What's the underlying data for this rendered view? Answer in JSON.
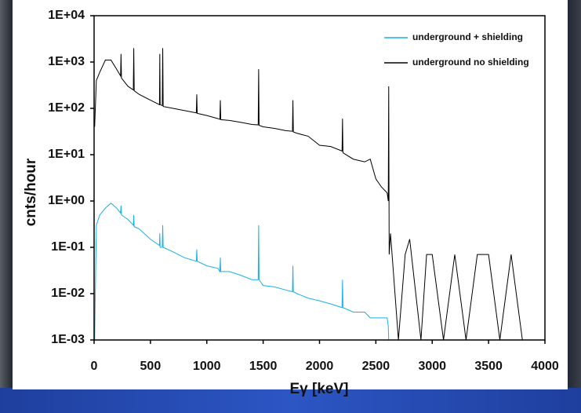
{
  "chart_data": {
    "type": "line",
    "x_label": "Eγ [keV]",
    "y_label": "cnts/hour",
    "log_y": true,
    "xlim": [
      0,
      4000
    ],
    "xticks": [
      0,
      500,
      1000,
      1500,
      2000,
      2500,
      3000,
      3500,
      4000
    ],
    "ylim": [
      0.001,
      10000
    ],
    "yticks": [
      {
        "value": 0.001,
        "label": "1E-03"
      },
      {
        "value": 0.01,
        "label": "1E-02"
      },
      {
        "value": 0.1,
        "label": "1E-01"
      },
      {
        "value": 1,
        "label": "1E+00"
      },
      {
        "value": 10,
        "label": "1E+01"
      },
      {
        "value": 100,
        "label": "1E+02"
      },
      {
        "value": 1000,
        "label": "1E+03"
      },
      {
        "value": 10000,
        "label": "1E+04"
      }
    ],
    "legend": "top-right",
    "x": [
      5,
      20,
      50,
      100,
      150,
      200,
      235,
      239,
      243,
      300,
      348,
      352,
      356,
      400,
      500,
      580,
      583,
      586,
      605,
      609,
      613,
      700,
      800,
      907,
      911,
      915,
      1000,
      1100,
      1116,
      1120,
      1124,
      1200,
      1300,
      1400,
      1456,
      1460,
      1464,
      1500,
      1600,
      1700,
      1760,
      1764,
      1768,
      1800,
      1900,
      2000,
      2100,
      2200,
      2204,
      2208,
      2300,
      2400,
      2450,
      2500,
      2550,
      2600,
      2610,
      2614,
      2618,
      2630,
      2700,
      2760,
      2800,
      2900,
      2950,
      3000,
      3100,
      3200,
      3300,
      3400,
      3500,
      3600,
      3700,
      3800,
      3900,
      3950
    ],
    "series": [
      {
        "name": "underground + shielding",
        "color": "#1ab0e6",
        "values": [
          0.001,
          0.3,
          0.5,
          0.7,
          0.9,
          0.7,
          0.55,
          0.8,
          0.5,
          0.4,
          0.3,
          0.5,
          0.28,
          0.25,
          0.15,
          0.11,
          0.2,
          0.1,
          0.1,
          0.3,
          0.1,
          0.08,
          0.06,
          0.05,
          0.09,
          0.05,
          0.04,
          0.035,
          0.03,
          0.06,
          0.03,
          0.03,
          0.025,
          0.02,
          0.02,
          0.3,
          0.02,
          0.015,
          0.014,
          0.012,
          0.011,
          0.04,
          0.011,
          0.01,
          0.008,
          0.007,
          0.006,
          0.005,
          0.02,
          0.005,
          0.004,
          0.004,
          0.003,
          0.003,
          0.003,
          0.003,
          0.002,
          0.001,
          null,
          null,
          null,
          null,
          null,
          null,
          null,
          null,
          null,
          null,
          null,
          null,
          null,
          null,
          null,
          null,
          null,
          null
        ]
      },
      {
        "name": "underground no shielding",
        "color": "#000000",
        "values": [
          40,
          400,
          600,
          1100,
          1100,
          700,
          500,
          1500,
          450,
          300,
          250,
          2000,
          240,
          200,
          150,
          120,
          1500,
          120,
          115,
          2000,
          110,
          100,
          90,
          80,
          200,
          78,
          70,
          60,
          58,
          150,
          57,
          55,
          50,
          45,
          44,
          700,
          43,
          40,
          37,
          33,
          32,
          150,
          31,
          29,
          25,
          16,
          15,
          12,
          60,
          11,
          8,
          7,
          8,
          3,
          2,
          1.5,
          1,
          300,
          0.07,
          0.2,
          0.001,
          0.07,
          0.15,
          0.001,
          0.07,
          0.07,
          0.001,
          0.07,
          0.001,
          0.07,
          0.07,
          0.001,
          0.07,
          0.001,
          0.001,
          0.001
        ]
      }
    ]
  }
}
